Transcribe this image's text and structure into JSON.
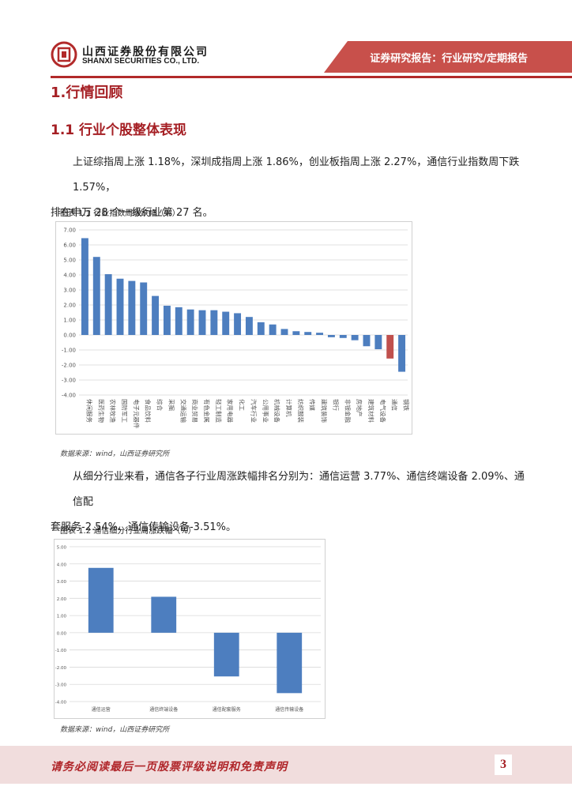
{
  "header": {
    "company_cn": "山西证券股份有限公司",
    "company_en": "SHANXI SECURITIES CO., LTD.",
    "report_tag": "证券研究报告：行业研究/定期报告",
    "colors": {
      "accent": "#b22a2a",
      "band": "#c8504b"
    }
  },
  "section": {
    "h1": "1.行情回顾",
    "h2": "1.1 行业个股整体表现"
  },
  "paragraph1": {
    "line1": "上证综指周上涨 1.18%，深圳成指周上涨 1.86%，创业板指周上涨 2.27%，通信行业指数周下跌 1.57%，",
    "line2": "排在申万 28 个一级行业第 27 名。"
  },
  "figure1": {
    "title": "图表 1.1  行业指数周涨跌幅（%）",
    "source": "数据来源：wind，山西证券研究所"
  },
  "paragraph2": {
    "line1": "从细分行业来看，通信各子行业周涨跌幅排名分别为：通信运营 3.77%、通信终端设备 2.09%、通信配",
    "line2": "套服务-2.54%、通信传输设备-3.51%。"
  },
  "figure2": {
    "title": "图表 1.2    通信细分行业周涨跌幅（%）",
    "source": "数据来源：wind，山西证券研究所"
  },
  "footer": {
    "disclaimer": "请务必阅读最后一页股票评级说明和免责声明",
    "page": "3"
  },
  "chart_data": [
    {
      "type": "bar",
      "ylim": [
        -4,
        7
      ],
      "yticks": [
        "7.00",
        "6.00",
        "5.00",
        "4.00",
        "3.00",
        "2.00",
        "1.00",
        "0.00",
        "-1.00",
        "-2.00",
        "-3.00",
        "-4.00"
      ],
      "grid": true,
      "categories": [
        "休闲服务",
        "医药生物",
        "农林牧渔",
        "国防军工",
        "电子元器件",
        "食品饮料",
        "综合",
        "采掘",
        "交通运输",
        "商业贸易",
        "有色金属",
        "轻工制造",
        "家用电器",
        "化工",
        "汽车行业",
        "公用事业",
        "机械设备",
        "计算机",
        "纺织服装",
        "传媒",
        "建筑装饰",
        "银行",
        "非银金融",
        "房地产",
        "建筑材料",
        "电气设备",
        "通信",
        "钢铁"
      ],
      "values": [
        6.45,
        5.2,
        4.05,
        3.75,
        3.6,
        3.5,
        2.6,
        1.95,
        1.85,
        1.7,
        1.65,
        1.65,
        1.55,
        1.45,
        1.2,
        0.85,
        0.7,
        0.4,
        0.25,
        0.2,
        0.15,
        -0.15,
        -0.2,
        -0.35,
        -0.75,
        -0.95,
        -1.57,
        -2.45
      ],
      "highlight_category": "通信",
      "colors": {
        "bar": "#4d7ebf",
        "highlight": "#c0504d"
      }
    },
    {
      "type": "bar",
      "ylim": [
        -4,
        5
      ],
      "yticks": [
        "5.00",
        "4.00",
        "3.00",
        "2.00",
        "1.00",
        "0.00",
        "-1.00",
        "-2.00",
        "-3.00",
        "-4.00"
      ],
      "grid": true,
      "categories": [
        "通信运营",
        "通信终端设备",
        "通信配套服务",
        "通信传输设备"
      ],
      "values": [
        3.77,
        2.09,
        -2.54,
        -3.51
      ],
      "colors": {
        "bar": "#4d7ebf"
      }
    }
  ]
}
